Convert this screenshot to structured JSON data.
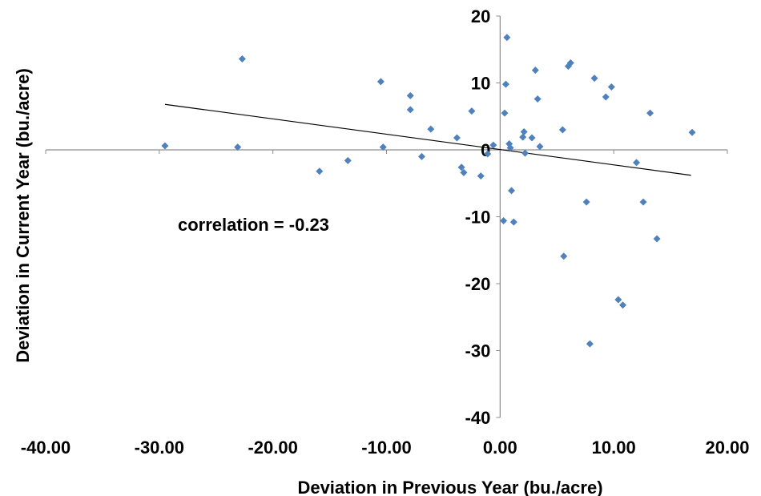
{
  "chart_data": {
    "type": "scatter",
    "title": "",
    "xlabel": "Deviation in Previous Year (bu./acre)",
    "ylabel": "Deviation in Current Year (bu./acre)",
    "xlim": [
      -40,
      20
    ],
    "ylim": [
      -40,
      20
    ],
    "x_ticks": [
      "-40.00",
      "-30.00",
      "-20.00",
      "-10.00",
      "0.00",
      "10.00",
      "20.00"
    ],
    "y_ticks": [
      "-40",
      "-30",
      "-20",
      "-10",
      "0",
      "10",
      "20"
    ],
    "grid": false,
    "legend": "none",
    "annotation": "correlation = -0.23",
    "marker_color": "#4F81BD",
    "trendline_color": "#000000",
    "trendline": {
      "x": [
        -29.5,
        16.8
      ],
      "y": [
        6.8,
        -3.8
      ]
    },
    "points": [
      {
        "x": -29.5,
        "y": 0.6
      },
      {
        "x": -23.1,
        "y": 0.4
      },
      {
        "x": -22.7,
        "y": 13.6
      },
      {
        "x": -15.9,
        "y": -3.2
      },
      {
        "x": -13.4,
        "y": -1.6
      },
      {
        "x": -10.5,
        "y": 10.2
      },
      {
        "x": -10.3,
        "y": 0.4
      },
      {
        "x": -7.9,
        "y": 8.1
      },
      {
        "x": -7.9,
        "y": 6.0
      },
      {
        "x": -6.9,
        "y": -1.0
      },
      {
        "x": -6.1,
        "y": 3.1
      },
      {
        "x": -3.8,
        "y": 1.8
      },
      {
        "x": -3.4,
        "y": -2.6
      },
      {
        "x": -3.2,
        "y": -3.4
      },
      {
        "x": -2.5,
        "y": 5.8
      },
      {
        "x": -1.7,
        "y": -3.9
      },
      {
        "x": -1.1,
        "y": -0.6
      },
      {
        "x": -0.6,
        "y": 0.7
      },
      {
        "x": 0.3,
        "y": -10.6
      },
      {
        "x": 0.4,
        "y": 5.5
      },
      {
        "x": 0.5,
        "y": 9.8
      },
      {
        "x": 0.6,
        "y": 16.8
      },
      {
        "x": 0.8,
        "y": 0.9
      },
      {
        "x": 0.9,
        "y": 0.3
      },
      {
        "x": 1.0,
        "y": -6.1
      },
      {
        "x": 1.2,
        "y": -10.8
      },
      {
        "x": 2.0,
        "y": 1.9
      },
      {
        "x": 2.1,
        "y": 2.7
      },
      {
        "x": 2.2,
        "y": -0.5
      },
      {
        "x": 2.8,
        "y": 1.8
      },
      {
        "x": 3.1,
        "y": 11.9
      },
      {
        "x": 3.3,
        "y": 7.6
      },
      {
        "x": 3.5,
        "y": 0.5
      },
      {
        "x": 5.5,
        "y": 3.0
      },
      {
        "x": 5.6,
        "y": -15.9
      },
      {
        "x": 6.0,
        "y": 12.5
      },
      {
        "x": 6.2,
        "y": 13.0
      },
      {
        "x": 7.6,
        "y": -7.8
      },
      {
        "x": 7.9,
        "y": -29.0
      },
      {
        "x": 8.3,
        "y": 10.7
      },
      {
        "x": 9.3,
        "y": 7.9
      },
      {
        "x": 9.8,
        "y": 9.4
      },
      {
        "x": 10.4,
        "y": -22.4
      },
      {
        "x": 10.8,
        "y": -23.2
      },
      {
        "x": 12.0,
        "y": -1.9
      },
      {
        "x": 12.6,
        "y": -7.8
      },
      {
        "x": 13.2,
        "y": 5.5
      },
      {
        "x": 13.8,
        "y": -13.3
      },
      {
        "x": 16.9,
        "y": 2.6
      }
    ]
  }
}
